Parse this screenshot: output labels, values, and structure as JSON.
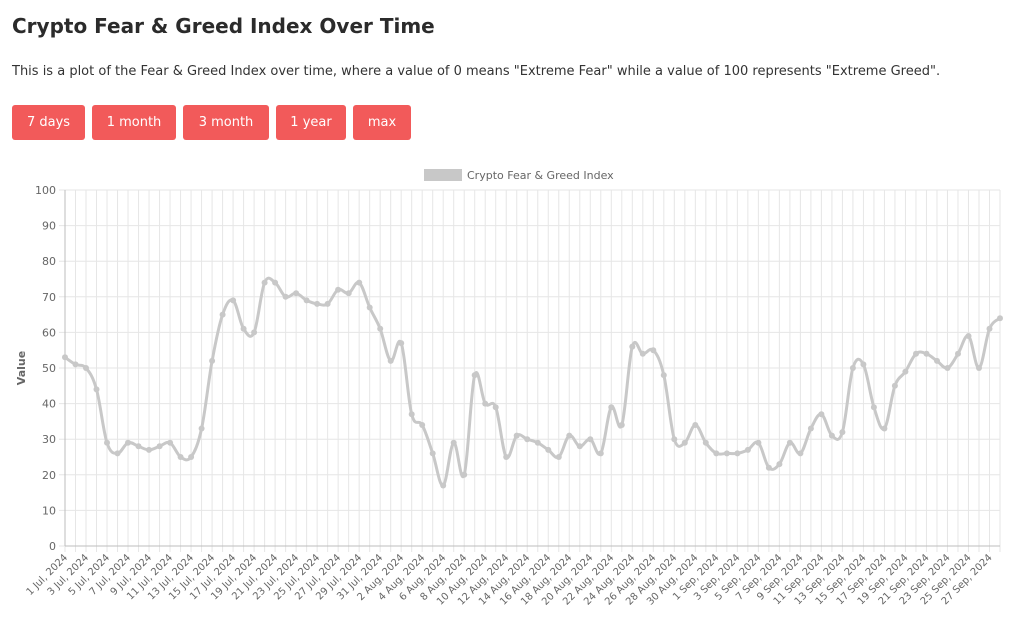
{
  "page": {
    "title": "Crypto Fear & Greed Index Over Time",
    "description": "This is a plot of the Fear & Greed Index over time, where a value of 0 means \"Extreme Fear\" while a value of 100 represents \"Extreme Greed\"."
  },
  "range_buttons": [
    {
      "label": "7 days"
    },
    {
      "label": "1 month"
    },
    {
      "label": "3 month"
    },
    {
      "label": "1 year"
    },
    {
      "label": "max"
    }
  ],
  "colors": {
    "button": "#f25a5a",
    "line": "#c8c8c8",
    "grid": "#e6e6e6"
  },
  "chart_data": {
    "type": "line",
    "legend": "Crypto Fear & Greed Index",
    "legend_position": "top",
    "ylabel": "Value",
    "ylim": [
      0,
      100
    ],
    "yticks": [
      0,
      10,
      20,
      30,
      40,
      50,
      60,
      70,
      80,
      90,
      100
    ],
    "grid": true,
    "x": [
      "1 Jul, 2024",
      "2 Jul, 2024",
      "3 Jul, 2024",
      "4 Jul, 2024",
      "5 Jul, 2024",
      "6 Jul, 2024",
      "7 Jul, 2024",
      "8 Jul, 2024",
      "9 Jul, 2024",
      "10 Jul, 2024",
      "11 Jul, 2024",
      "12 Jul, 2024",
      "13 Jul, 2024",
      "14 Jul, 2024",
      "15 Jul, 2024",
      "16 Jul, 2024",
      "17 Jul, 2024",
      "18 Jul, 2024",
      "19 Jul, 2024",
      "20 Jul, 2024",
      "21 Jul, 2024",
      "22 Jul, 2024",
      "23 Jul, 2024",
      "24 Jul, 2024",
      "25 Jul, 2024",
      "26 Jul, 2024",
      "27 Jul, 2024",
      "28 Jul, 2024",
      "29 Jul, 2024",
      "30 Jul, 2024",
      "31 Jul, 2024",
      "1 Aug, 2024",
      "2 Aug, 2024",
      "3 Aug, 2024",
      "4 Aug, 2024",
      "5 Aug, 2024",
      "6 Aug, 2024",
      "7 Aug, 2024",
      "8 Aug, 2024",
      "9 Aug, 2024",
      "10 Aug, 2024",
      "11 Aug, 2024",
      "12 Aug, 2024",
      "13 Aug, 2024",
      "14 Aug, 2024",
      "15 Aug, 2024",
      "16 Aug, 2024",
      "17 Aug, 2024",
      "18 Aug, 2024",
      "19 Aug, 2024",
      "20 Aug, 2024",
      "21 Aug, 2024",
      "22 Aug, 2024",
      "23 Aug, 2024",
      "24 Aug, 2024",
      "25 Aug, 2024",
      "26 Aug, 2024",
      "27 Aug, 2024",
      "28 Aug, 2024",
      "29 Aug, 2024",
      "30 Aug, 2024",
      "31 Aug, 2024",
      "1 Sep, 2024",
      "2 Sep, 2024",
      "3 Sep, 2024",
      "4 Sep, 2024",
      "5 Sep, 2024",
      "6 Sep, 2024",
      "7 Sep, 2024",
      "8 Sep, 2024",
      "9 Sep, 2024",
      "10 Sep, 2024",
      "11 Sep, 2024",
      "12 Sep, 2024",
      "13 Sep, 2024",
      "14 Sep, 2024",
      "15 Sep, 2024",
      "16 Sep, 2024",
      "17 Sep, 2024",
      "18 Sep, 2024",
      "19 Sep, 2024",
      "20 Sep, 2024",
      "21 Sep, 2024",
      "22 Sep, 2024",
      "23 Sep, 2024",
      "24 Sep, 2024",
      "25 Sep, 2024",
      "26 Sep, 2024",
      "27 Sep, 2024",
      "28 Sep, 2024"
    ],
    "values": [
      53,
      51,
      50,
      44,
      29,
      26,
      29,
      28,
      27,
      28,
      29,
      25,
      25,
      33,
      52,
      65,
      69,
      61,
      60,
      74,
      74,
      70,
      71,
      69,
      68,
      68,
      72,
      71,
      74,
      67,
      61,
      52,
      57,
      37,
      34,
      26,
      17,
      29,
      20,
      48,
      40,
      39,
      25,
      31,
      30,
      29,
      27,
      25,
      31,
      28,
      30,
      26,
      39,
      34,
      56,
      54,
      55,
      48,
      30,
      29,
      34,
      29,
      26,
      26,
      26,
      27,
      29,
      22,
      23,
      29,
      26,
      33,
      37,
      31,
      32,
      50,
      51,
      39,
      33,
      45,
      49,
      54,
      54,
      52,
      50,
      54,
      59,
      50,
      61,
      64
    ]
  }
}
